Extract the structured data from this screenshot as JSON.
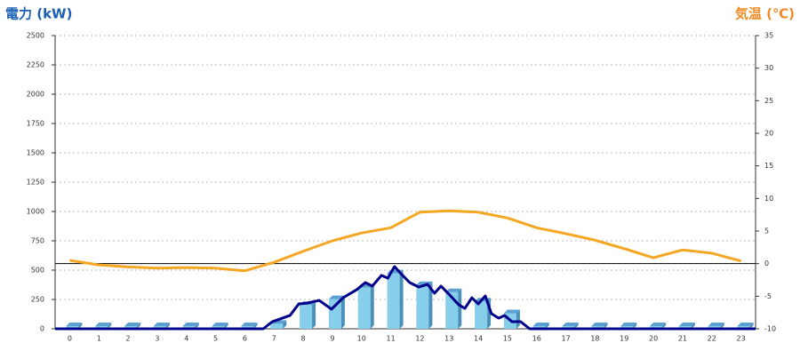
{
  "chart_data": {
    "type": "combo",
    "ylabel": "電力 (kW)",
    "y2label": "気温 (℃)",
    "categories": [
      "0",
      "1",
      "2",
      "3",
      "4",
      "5",
      "6",
      "7",
      "8",
      "9",
      "10",
      "11",
      "12",
      "13",
      "14",
      "15",
      "16",
      "17",
      "18",
      "19",
      "20",
      "21",
      "22",
      "23"
    ],
    "ylim": [
      0,
      2500
    ],
    "yticks": [
      0,
      250,
      500,
      750,
      1000,
      1250,
      1500,
      1750,
      2000,
      2250,
      2500
    ],
    "y2lim": [
      -10,
      35
    ],
    "y2ticks": [
      -10,
      -5,
      0,
      5,
      10,
      15,
      20,
      25,
      30,
      35
    ],
    "y2_reference": 0,
    "grid": true,
    "series": [
      {
        "type": "bar",
        "color": "#87ceeb",
        "values": [
          0,
          0,
          0,
          0,
          0,
          0,
          0,
          20,
          180,
          230,
          330,
          450,
          350,
          290,
          210,
          110,
          0,
          0,
          0,
          0,
          0,
          0,
          0,
          0
        ]
      },
      {
        "type": "line",
        "color": "#00008b",
        "x": [
          -0.5,
          6.63,
          6.94,
          7.55,
          7.85,
          8.15,
          8.55,
          8.97,
          9.37,
          9.83,
          10.13,
          10.37,
          10.68,
          10.9,
          11.13,
          11.35,
          11.65,
          11.96,
          12.26,
          12.5,
          12.72,
          13.02,
          13.33,
          13.54,
          13.78,
          14.0,
          14.24,
          14.45,
          14.7,
          14.9,
          15.15,
          15.45,
          15.76,
          23.5
        ],
        "values": [
          0,
          0,
          60,
          114,
          212,
          220,
          242,
          167,
          265,
          333,
          394,
          364,
          455,
          432,
          530,
          470,
          394,
          356,
          379,
          303,
          364,
          288,
          205,
          174,
          265,
          212,
          280,
          129,
          91,
          114,
          61,
          61,
          0,
          0
        ]
      },
      {
        "type": "line",
        "axis": "y2",
        "color": "#f5a623",
        "values": [
          0.5,
          -0.2,
          -0.5,
          -0.7,
          -0.6,
          -0.7,
          -1.1,
          0.2,
          1.9,
          3.5,
          4.7,
          5.5,
          7.9,
          8.1,
          7.9,
          7.0,
          5.5,
          4.6,
          3.6,
          2.3,
          0.9,
          2.1,
          1.6,
          0.4
        ]
      }
    ]
  }
}
